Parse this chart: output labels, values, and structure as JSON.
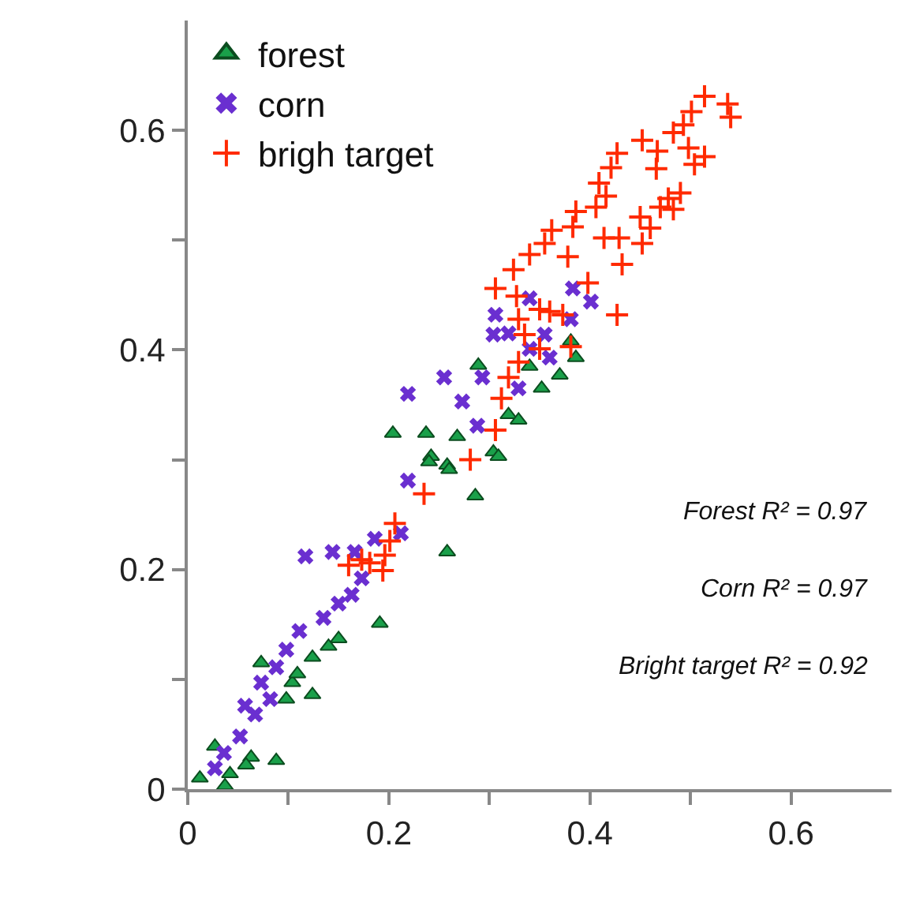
{
  "chart_data": {
    "type": "scatter",
    "xlim": [
      0,
      0.7
    ],
    "ylim": [
      0,
      0.7
    ],
    "xticks": [
      0,
      {
        "value": 0.1,
        "label": null
      },
      0.2,
      {
        "value": 0.3,
        "label": null
      },
      0.4,
      {
        "value": 0.5,
        "label": null
      },
      0.6
    ],
    "yticks": [
      0,
      {
        "value": 0.1,
        "label": null
      },
      0.2,
      {
        "value": 0.3,
        "label": null
      },
      0.4,
      {
        "value": 0.5,
        "label": null
      },
      0.6
    ],
    "legend": "top left",
    "annotations": [
      "Forest R² = 0.97",
      "Corn R² = 0.97",
      "Bright target R² = 0.92"
    ],
    "series": [
      {
        "name": "forest",
        "color": "#1aa04a",
        "marker": "triangle",
        "x": [
          0.204,
          0.237,
          0.268,
          0.242,
          0.289,
          0.319,
          0.329,
          0.304,
          0.381,
          0.386,
          0.37,
          0.352,
          0.34,
          0.258,
          0.24,
          0.26,
          0.286,
          0.309,
          0.258,
          0.191,
          0.15,
          0.124,
          0.124,
          0.104,
          0.073,
          0.088,
          0.063,
          0.042,
          0.027,
          0.012,
          0.037,
          0.058,
          0.098,
          0.14,
          0.109
        ],
        "values": [
          0.324,
          0.324,
          0.321,
          0.303,
          0.386,
          0.341,
          0.336,
          0.307,
          0.408,
          0.393,
          0.377,
          0.365,
          0.385,
          0.295,
          0.298,
          0.291,
          0.267,
          0.303,
          0.216,
          0.151,
          0.137,
          0.12,
          0.086,
          0.097,
          0.115,
          0.026,
          0.029,
          0.014,
          0.039,
          0.01,
          0.003,
          0.022,
          0.082,
          0.13,
          0.105
        ]
      },
      {
        "name": "corn",
        "color": "#6a2fd0",
        "marker": "x",
        "x": [
          0.383,
          0.401,
          0.34,
          0.306,
          0.304,
          0.319,
          0.355,
          0.381,
          0.36,
          0.34,
          0.329,
          0.293,
          0.255,
          0.219,
          0.273,
          0.288,
          0.219,
          0.212,
          0.186,
          0.166,
          0.144,
          0.117,
          0.173,
          0.163,
          0.15,
          0.135,
          0.111,
          0.098,
          0.088,
          0.073,
          0.057,
          0.067,
          0.052,
          0.036,
          0.027,
          0.082
        ],
        "values": [
          0.456,
          0.444,
          0.447,
          0.432,
          0.414,
          0.415,
          0.414,
          0.428,
          0.393,
          0.401,
          0.365,
          0.375,
          0.375,
          0.36,
          0.353,
          0.331,
          0.281,
          0.233,
          0.228,
          0.216,
          0.216,
          0.212,
          0.192,
          0.177,
          0.169,
          0.156,
          0.144,
          0.127,
          0.111,
          0.097,
          0.076,
          0.068,
          0.048,
          0.033,
          0.019,
          0.082
        ]
      },
      {
        "name": "brigh target",
        "color": "#ff2a00",
        "marker": "cross",
        "x": [
          0.514,
          0.537,
          0.54,
          0.501,
          0.493,
          0.483,
          0.452,
          0.467,
          0.498,
          0.514,
          0.504,
          0.466,
          0.427,
          0.421,
          0.409,
          0.416,
          0.406,
          0.478,
          0.49,
          0.47,
          0.483,
          0.386,
          0.383,
          0.362,
          0.355,
          0.34,
          0.378,
          0.324,
          0.306,
          0.327,
          0.45,
          0.46,
          0.414,
          0.429,
          0.452,
          0.432,
          0.398,
          0.427,
          0.373,
          0.36,
          0.35,
          0.329,
          0.335,
          0.381,
          0.35,
          0.329,
          0.319,
          0.312,
          0.306,
          0.281,
          0.235,
          0.206,
          0.201,
          0.196,
          0.181,
          0.16,
          0.194,
          0.173
        ],
        "values": [
          0.631,
          0.624,
          0.612,
          0.617,
          0.605,
          0.598,
          0.591,
          0.581,
          0.584,
          0.576,
          0.569,
          0.565,
          0.579,
          0.566,
          0.552,
          0.54,
          0.53,
          0.538,
          0.543,
          0.53,
          0.528,
          0.526,
          0.512,
          0.509,
          0.497,
          0.487,
          0.485,
          0.473,
          0.456,
          0.449,
          0.521,
          0.511,
          0.502,
          0.502,
          0.497,
          0.478,
          0.461,
          0.432,
          0.432,
          0.435,
          0.437,
          0.428,
          0.414,
          0.403,
          0.401,
          0.389,
          0.375,
          0.356,
          0.327,
          0.3,
          0.269,
          0.242,
          0.226,
          0.213,
          0.206,
          0.204,
          0.199,
          0.209
        ]
      }
    ]
  }
}
